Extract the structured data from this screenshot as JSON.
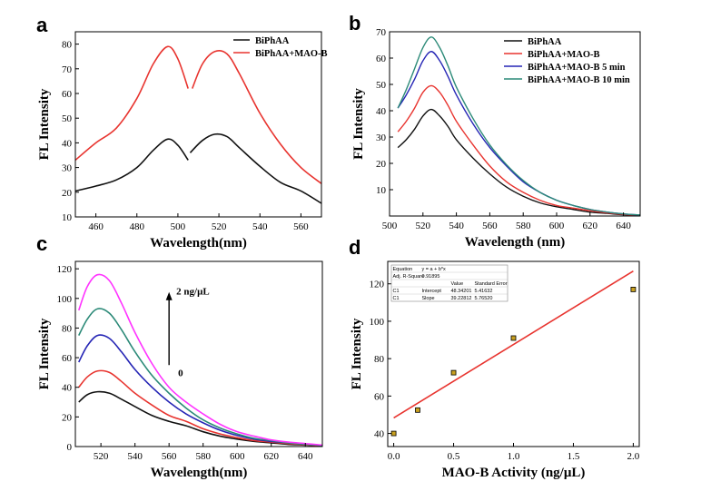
{
  "colors": {
    "black": "#111111",
    "red": "#e8342f",
    "blue": "#2525b5",
    "teal": "#2c8a78",
    "magenta": "#ff33ff",
    "marker_fill": "#c8a020"
  },
  "chart_data": [
    {
      "panel": "a",
      "type": "line",
      "xlabel": "Wavelength(nm)",
      "ylabel": "FL Intensity",
      "xlim": [
        450,
        570
      ],
      "ylim": [
        10,
        85
      ],
      "xticks": [
        460,
        480,
        500,
        520,
        540,
        560
      ],
      "yticks": [
        10,
        20,
        30,
        40,
        50,
        60,
        70,
        80
      ],
      "legend_position": "top-right",
      "series": [
        {
          "name": "BiPhAA",
          "color": "black",
          "segments": [
            [
              [
                450,
                20.5
              ],
              [
                460,
                22.5
              ],
              [
                470,
                25
              ],
              [
                480,
                30
              ],
              [
                488,
                37
              ],
              [
                495,
                41.5
              ],
              [
                500,
                39
              ],
              [
                505,
                33
              ]
            ],
            [
              [
                506,
                36
              ],
              [
                512,
                41
              ],
              [
                518,
                43.5
              ],
              [
                524,
                42.5
              ],
              [
                530,
                38
              ],
              [
                540,
                30.5
              ],
              [
                550,
                24
              ],
              [
                560,
                20.5
              ],
              [
                570,
                15.5
              ]
            ]
          ]
        },
        {
          "name": "BiPhAA+MAO-B",
          "color": "red",
          "segments": [
            [
              [
                450,
                33
              ],
              [
                460,
                40
              ],
              [
                470,
                46
              ],
              [
                480,
                58
              ],
              [
                488,
                72
              ],
              [
                495,
                79
              ],
              [
                500,
                74
              ],
              [
                505,
                62
              ]
            ],
            [
              [
                507,
                62
              ],
              [
                512,
                72
              ],
              [
                518,
                77
              ],
              [
                524,
                76
              ],
              [
                530,
                68
              ],
              [
                540,
                52
              ],
              [
                550,
                39.5
              ],
              [
                560,
                30
              ],
              [
                570,
                23.5
              ]
            ]
          ]
        }
      ]
    },
    {
      "panel": "b",
      "type": "line",
      "xlabel": "Wavelength (nm)",
      "ylabel": "FL Intensity",
      "xlim": [
        500,
        650
      ],
      "ylim": [
        0,
        70
      ],
      "xticks": [
        500,
        520,
        540,
        560,
        580,
        600,
        620,
        640
      ],
      "yticks": [
        10,
        20,
        30,
        40,
        50,
        60,
        70
      ],
      "legend_position": "top-right",
      "series": [
        {
          "name": "BiPhAA",
          "color": "black",
          "x": [
            505,
            510,
            515,
            520,
            525,
            530,
            535,
            540,
            550,
            560,
            570,
            580,
            590,
            600,
            610,
            620,
            630,
            640,
            650
          ],
          "y": [
            26,
            29,
            33,
            38,
            40.5,
            38,
            34,
            29,
            22,
            16,
            11,
            7.5,
            5,
            3.5,
            2.5,
            1.5,
            1,
            0.5,
            0.3
          ]
        },
        {
          "name": "BiPhAA+MAO-B",
          "color": "red",
          "x": [
            505,
            510,
            515,
            520,
            525,
            530,
            535,
            540,
            550,
            560,
            570,
            580,
            590,
            600,
            610,
            620,
            630,
            640,
            650
          ],
          "y": [
            32,
            36,
            41,
            47,
            49.5,
            47,
            42,
            36,
            27,
            19,
            13,
            9,
            6,
            4,
            3,
            2,
            1.2,
            0.6,
            0.3
          ]
        },
        {
          "name": "BiPhAA+MAO-B 5 min",
          "color": "blue",
          "x": [
            505,
            510,
            515,
            520,
            525,
            530,
            535,
            540,
            550,
            560,
            570,
            580,
            590,
            600,
            610,
            620,
            630,
            640,
            650
          ],
          "y": [
            41,
            46,
            52,
            59,
            62.5,
            59,
            53,
            46,
            35,
            26,
            19,
            13,
            9,
            6,
            4,
            2.5,
            1.5,
            0.8,
            0.4
          ]
        },
        {
          "name": "BiPhAA+MAO-B 10 min",
          "color": "teal",
          "x": [
            505,
            510,
            515,
            520,
            525,
            530,
            535,
            540,
            550,
            560,
            570,
            580,
            590,
            600,
            610,
            620,
            630,
            640,
            650
          ],
          "y": [
            41,
            48,
            56,
            64,
            68,
            64,
            57,
            49,
            37,
            27,
            19.5,
            13.5,
            9,
            6,
            4,
            2.5,
            1.5,
            0.8,
            0.4
          ]
        }
      ]
    },
    {
      "panel": "c",
      "type": "line",
      "xlabel": "Wavelength(nm)",
      "ylabel": "FL Intensity",
      "xlim": [
        505,
        650
      ],
      "ylim": [
        0,
        125
      ],
      "xticks": [
        520,
        540,
        560,
        580,
        600,
        620,
        640
      ],
      "yticks": [
        0,
        20,
        40,
        60,
        80,
        100,
        120
      ],
      "annotations": {
        "top": "2 ng/μL",
        "bottom": "0"
      },
      "series": [
        {
          "color": "black",
          "x": [
            507,
            512,
            518,
            525,
            532,
            540,
            550,
            560,
            570,
            580,
            590,
            600,
            610,
            620,
            630,
            640,
            650
          ],
          "y": [
            30,
            35,
            37,
            36,
            32,
            27,
            21,
            17,
            14,
            10,
            7,
            5,
            3.5,
            2.5,
            1.5,
            1,
            0.5
          ]
        },
        {
          "color": "red",
          "x": [
            507,
            512,
            518,
            525,
            532,
            540,
            550,
            560,
            570,
            580,
            590,
            600,
            610,
            620,
            630,
            640,
            650
          ],
          "y": [
            40,
            47,
            51,
            50,
            44,
            36,
            28,
            21,
            17,
            12,
            8.5,
            6,
            4,
            3,
            2,
            1.2,
            0.6
          ]
        },
        {
          "color": "blue",
          "x": [
            507,
            512,
            518,
            525,
            532,
            540,
            550,
            560,
            570,
            580,
            590,
            600,
            610,
            620,
            630,
            640,
            650
          ],
          "y": [
            57,
            68,
            75,
            73,
            64,
            52,
            40,
            30,
            22,
            16,
            11,
            7.5,
            5,
            3.5,
            2.5,
            1.5,
            0.8
          ]
        },
        {
          "color": "teal",
          "x": [
            507,
            512,
            518,
            525,
            532,
            540,
            550,
            560,
            570,
            580,
            590,
            600,
            610,
            620,
            630,
            640,
            650
          ],
          "y": [
            75,
            86,
            93,
            90,
            79,
            64,
            48,
            36,
            26,
            18,
            12.5,
            8.5,
            5.5,
            4,
            2.5,
            1.5,
            0.8
          ]
        },
        {
          "color": "magenta",
          "x": [
            507,
            512,
            518,
            525,
            532,
            540,
            550,
            560,
            570,
            580,
            590,
            600,
            610,
            620,
            630,
            640,
            650
          ],
          "y": [
            92,
            108,
            116,
            112,
            97,
            77,
            56,
            40,
            30,
            22,
            15,
            10,
            7,
            4.5,
            3,
            2,
            1
          ]
        }
      ]
    },
    {
      "panel": "d",
      "type": "scatter",
      "xlabel": "MAO-B Activity (ng/μL)",
      "ylabel": "FL Intensity",
      "xlim": [
        -0.05,
        2.05
      ],
      "ylim": [
        33,
        132
      ],
      "xticks": [
        "0.0",
        "0.5",
        "1.0",
        "1.5",
        "2.0"
      ],
      "yticks": [
        40,
        60,
        80,
        100,
        120
      ],
      "points": {
        "x": [
          0,
          0.2,
          0.5,
          1.0,
          2.0
        ],
        "y": [
          40,
          52.5,
          72.5,
          91,
          117
        ]
      },
      "fit": {
        "intercept": 48.34201,
        "slope": 39.22812
      },
      "fit_table": {
        "rows": [
          [
            "Equation",
            "y = a + b*x",
            "",
            ""
          ],
          [
            "Adj. R-Square",
            "0.91895",
            "",
            ""
          ],
          [
            "",
            "",
            "Value",
            "Standard Error"
          ],
          [
            "C1",
            "Intercept",
            "48.34201",
            "5.41632"
          ],
          [
            "C1",
            "Slope",
            "39.22812",
            "5.76520"
          ]
        ]
      }
    }
  ]
}
